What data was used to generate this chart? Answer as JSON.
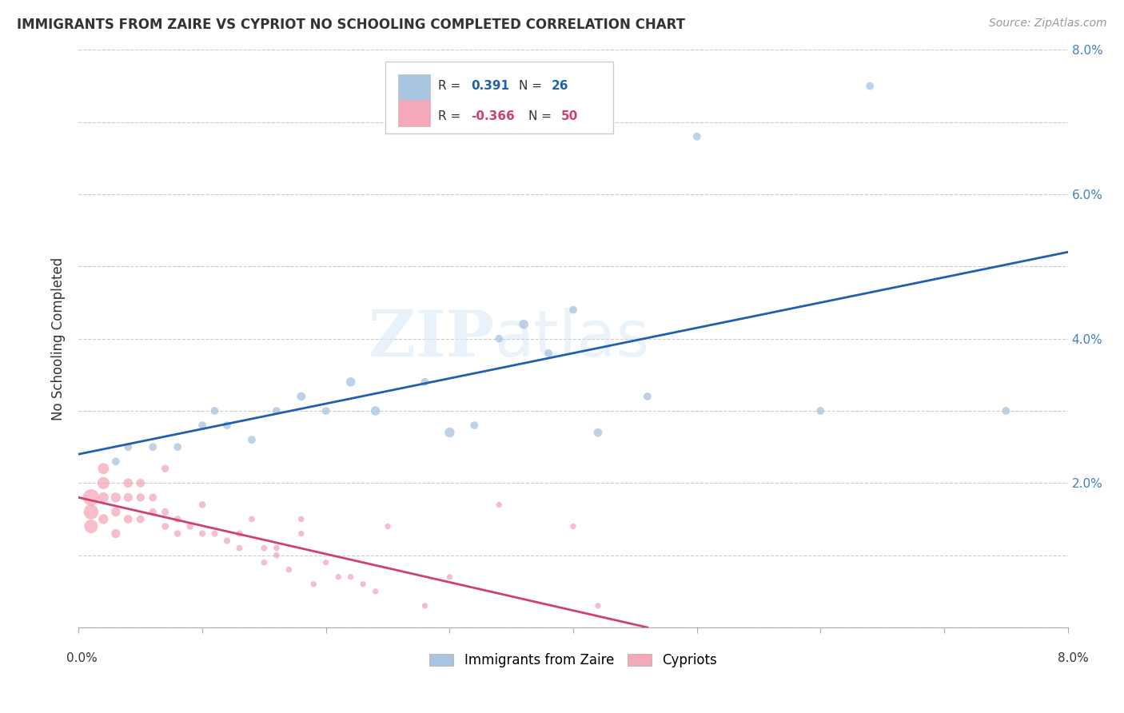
{
  "title": "IMMIGRANTS FROM ZAIRE VS CYPRIOT NO SCHOOLING COMPLETED CORRELATION CHART",
  "source": "Source: ZipAtlas.com",
  "ylabel": "No Schooling Completed",
  "xlim": [
    0.0,
    0.08
  ],
  "ylim": [
    0.0,
    0.08
  ],
  "blue_R": "0.391",
  "blue_N": "26",
  "pink_R": "-0.366",
  "pink_N": "50",
  "blue_color": "#a8c4e0",
  "pink_color": "#f4a8b8",
  "blue_line_color": "#2060b0",
  "pink_line_color": "#d04070",
  "watermark_zip": "ZIP",
  "watermark_atlas": "atlas",
  "legend_label_blue": "Immigrants from Zaire",
  "legend_label_pink": "Cypriots",
  "right_ytick_color": "#4080c0",
  "blue_scatter_x": [
    0.03,
    0.042,
    0.004,
    0.01,
    0.011,
    0.012,
    0.014,
    0.016,
    0.018,
    0.02,
    0.022,
    0.024,
    0.028,
    0.032,
    0.034,
    0.036,
    0.038,
    0.04,
    0.046,
    0.05,
    0.06,
    0.064,
    0.075,
    0.003,
    0.006,
    0.008
  ],
  "blue_scatter_y": [
    0.027,
    0.027,
    0.025,
    0.028,
    0.03,
    0.028,
    0.026,
    0.03,
    0.032,
    0.03,
    0.034,
    0.03,
    0.034,
    0.028,
    0.04,
    0.042,
    0.038,
    0.044,
    0.032,
    0.068,
    0.03,
    0.075,
    0.03,
    0.023,
    0.025,
    0.025
  ],
  "blue_scatter_sizes": [
    80,
    60,
    50,
    50,
    50,
    50,
    50,
    50,
    60,
    50,
    70,
    70,
    50,
    50,
    50,
    70,
    50,
    50,
    50,
    50,
    50,
    50,
    50,
    50,
    50,
    50
  ],
  "pink_scatter_x": [
    0.001,
    0.001,
    0.001,
    0.002,
    0.002,
    0.002,
    0.002,
    0.003,
    0.003,
    0.003,
    0.004,
    0.004,
    0.004,
    0.005,
    0.005,
    0.005,
    0.006,
    0.006,
    0.007,
    0.007,
    0.007,
    0.008,
    0.008,
    0.009,
    0.01,
    0.01,
    0.011,
    0.012,
    0.013,
    0.013,
    0.014,
    0.015,
    0.015,
    0.016,
    0.016,
    0.017,
    0.018,
    0.018,
    0.019,
    0.02,
    0.021,
    0.022,
    0.023,
    0.024,
    0.025,
    0.028,
    0.03,
    0.034,
    0.04,
    0.042
  ],
  "pink_scatter_y": [
    0.018,
    0.016,
    0.014,
    0.02,
    0.022,
    0.018,
    0.015,
    0.018,
    0.016,
    0.013,
    0.02,
    0.018,
    0.015,
    0.02,
    0.018,
    0.015,
    0.018,
    0.016,
    0.016,
    0.022,
    0.014,
    0.015,
    0.013,
    0.014,
    0.017,
    0.013,
    0.013,
    0.012,
    0.013,
    0.011,
    0.015,
    0.011,
    0.009,
    0.01,
    0.011,
    0.008,
    0.015,
    0.013,
    0.006,
    0.009,
    0.007,
    0.007,
    0.006,
    0.005,
    0.014,
    0.003,
    0.007,
    0.017,
    0.014,
    0.003
  ],
  "pink_scatter_sizes": [
    220,
    180,
    150,
    120,
    100,
    90,
    80,
    80,
    70,
    65,
    70,
    65,
    60,
    60,
    55,
    50,
    50,
    45,
    45,
    45,
    40,
    40,
    38,
    38,
    38,
    35,
    35,
    35,
    35,
    32,
    32,
    32,
    30,
    30,
    30,
    30,
    30,
    28,
    28,
    28,
    28,
    28,
    28,
    28,
    28,
    28,
    28,
    28,
    28,
    28
  ],
  "blue_line_x0": 0.0,
  "blue_line_x1": 0.08,
  "blue_line_y0": 0.024,
  "blue_line_y1": 0.052,
  "pink_line_x0": 0.0,
  "pink_line_x1": 0.046,
  "pink_line_y0": 0.018,
  "pink_line_y1": 0.0
}
